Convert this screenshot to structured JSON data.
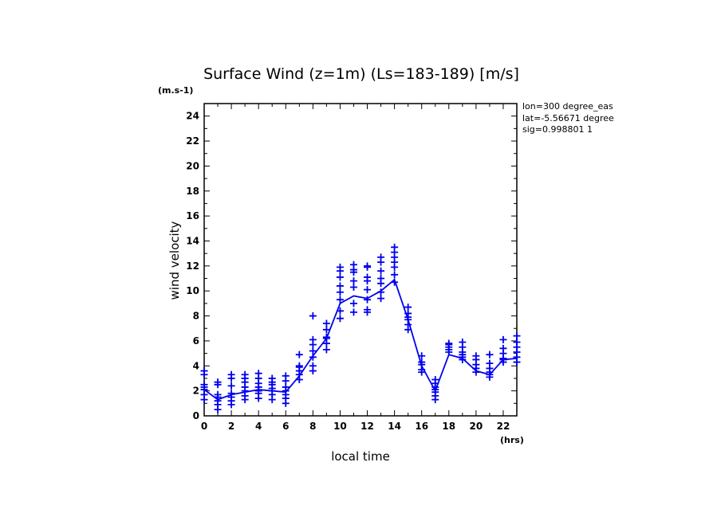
{
  "chart_data": {
    "type": "scatter",
    "title": "Surface Wind (z=1m) (Ls=183-189) [m/s]",
    "ylabel": "wind velocity",
    "yunit": "(m.s-1)",
    "xlabel": "local time",
    "xunit": "(hrs)",
    "xlim": [
      0,
      23
    ],
    "ylim": [
      0,
      25
    ],
    "x_ticks": [
      0,
      2,
      4,
      6,
      8,
      10,
      12,
      14,
      16,
      18,
      20,
      22
    ],
    "y_ticks": [
      0,
      2,
      4,
      6,
      8,
      10,
      12,
      14,
      16,
      18,
      20,
      22,
      24
    ],
    "color": "#0000ee",
    "info_lines": [
      "lon=300 degree_eas",
      "lat=-5.56671 degree",
      "sig=0.998801 1"
    ],
    "mean_line": {
      "x": [
        0,
        1,
        2,
        3,
        4,
        5,
        6,
        7,
        8,
        9,
        10,
        11,
        12,
        13,
        14,
        15,
        16,
        17,
        18,
        19,
        20,
        21,
        22,
        23
      ],
      "y": [
        2.1,
        1.3,
        1.7,
        1.9,
        2.1,
        2.0,
        1.9,
        3.2,
        4.8,
        6.2,
        9.0,
        9.6,
        9.4,
        10.0,
        10.9,
        7.7,
        4.0,
        2.0,
        4.9,
        4.6,
        3.6,
        3.3,
        4.5,
        4.6
      ]
    },
    "scatter": [
      {
        "x": 0,
        "y": [
          1.3,
          1.7,
          2.1,
          2.3,
          2.5,
          3.3,
          3.6
        ]
      },
      {
        "x": 1,
        "y": [
          0.5,
          0.9,
          1.2,
          1.5,
          1.7,
          2.5,
          2.7
        ]
      },
      {
        "x": 2,
        "y": [
          0.9,
          1.2,
          1.5,
          1.8,
          2.4,
          3.0,
          3.3
        ]
      },
      {
        "x": 3,
        "y": [
          1.3,
          1.6,
          2.0,
          2.3,
          2.7,
          3.0,
          3.3
        ]
      },
      {
        "x": 4,
        "y": [
          1.4,
          1.8,
          2.0,
          2.3,
          2.6,
          3.0,
          3.4
        ]
      },
      {
        "x": 5,
        "y": [
          1.3,
          1.7,
          2.0,
          2.2,
          2.5,
          2.7,
          3.0
        ]
      },
      {
        "x": 6,
        "y": [
          1.0,
          1.4,
          1.7,
          2.0,
          2.3,
          2.8,
          3.2
        ]
      },
      {
        "x": 7,
        "y": [
          2.9,
          3.3,
          3.6,
          3.9,
          4.0,
          4.9
        ]
      },
      {
        "x": 8,
        "y": [
          3.6,
          4.0,
          4.7,
          5.2,
          5.7,
          6.1,
          8.0
        ]
      },
      {
        "x": 9,
        "y": [
          5.3,
          5.8,
          6.2,
          6.3,
          6.9,
          7.4
        ]
      },
      {
        "x": 10,
        "y": [
          7.8,
          8.4,
          9.3,
          9.9,
          10.4,
          11.1,
          11.6,
          11.9
        ]
      },
      {
        "x": 11,
        "y": [
          8.3,
          9.0,
          10.3,
          10.8,
          11.5,
          11.7,
          12.1
        ]
      },
      {
        "x": 12,
        "y": [
          8.3,
          8.5,
          9.3,
          10.1,
          10.8,
          11.1,
          11.9,
          12.0
        ]
      },
      {
        "x": 13,
        "y": [
          9.4,
          9.9,
          10.6,
          11.0,
          11.6,
          12.3,
          12.7
        ]
      },
      {
        "x": 14,
        "y": [
          10.7,
          11.3,
          11.9,
          12.3,
          12.7,
          13.1,
          13.5
        ]
      },
      {
        "x": 15,
        "y": [
          6.9,
          7.3,
          7.7,
          7.9,
          8.2,
          8.7
        ]
      },
      {
        "x": 16,
        "y": [
          3.5,
          3.7,
          4.1,
          4.3,
          4.8
        ]
      },
      {
        "x": 17,
        "y": [
          1.3,
          1.6,
          1.9,
          2.1,
          2.3,
          2.6,
          2.9
        ]
      },
      {
        "x": 18,
        "y": [
          5.1,
          5.3,
          5.5,
          5.7,
          5.8
        ]
      },
      {
        "x": 19,
        "y": [
          4.5,
          4.7,
          4.9,
          5.1,
          5.5,
          5.9
        ]
      },
      {
        "x": 20,
        "y": [
          3.5,
          3.8,
          4.1,
          4.5,
          4.8
        ]
      },
      {
        "x": 21,
        "y": [
          3.1,
          3.3,
          3.5,
          3.8,
          4.2,
          4.9
        ]
      },
      {
        "x": 22,
        "y": [
          4.3,
          4.5,
          4.6,
          5.0,
          5.4,
          6.1
        ]
      },
      {
        "x": 23,
        "y": [
          4.3,
          4.7,
          5.1,
          5.5,
          5.9,
          6.4
        ]
      }
    ]
  }
}
